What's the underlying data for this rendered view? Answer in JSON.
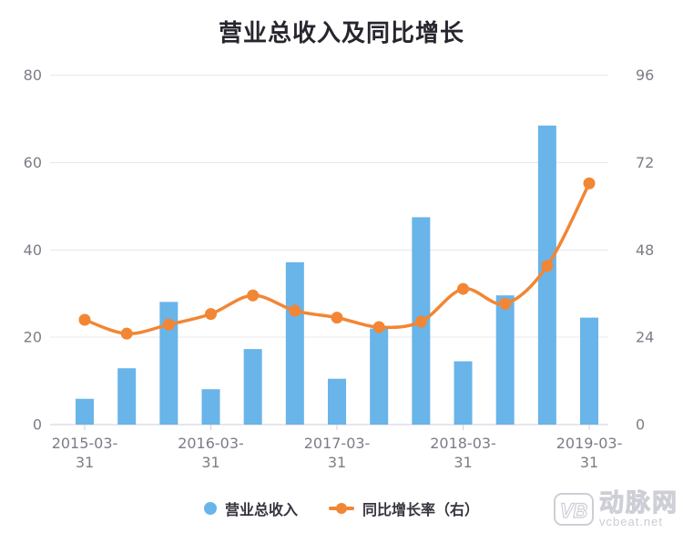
{
  "title": "营业总收入及同比增长",
  "legend": [
    {
      "label": "营业总收入",
      "type": "bar"
    },
    {
      "label": "同比增长率（右）",
      "type": "line"
    }
  ],
  "watermark": {
    "logo": "VB",
    "brand": "动脉网",
    "site": "vcbeat.net"
  },
  "colors": {
    "bar": "#69b4e9",
    "line": "#f28634",
    "grid": "#e8e8ed",
    "axis": "#ccced8",
    "axis_label": "#7c7c87",
    "title": "#26262e",
    "legend_text": "#34343e",
    "watermark": "#c9c9d2"
  },
  "chart_data": {
    "type": "bar",
    "subtype": "bar+line dual axis",
    "title": "营业总收入及同比增长",
    "categories": [
      "2015-03-31",
      "",
      "",
      "2016-03-31",
      "",
      "",
      "2017-03-31",
      "",
      "",
      "2018-03-31",
      "",
      "",
      "2019-03-31"
    ],
    "x_label_interval": 3,
    "series": [
      {
        "name": "营业总收入",
        "type": "bar",
        "axis": "left",
        "values": [
          5.9,
          12.9,
          28.1,
          8.1,
          17.3,
          37.2,
          10.5,
          22,
          47.5,
          14.5,
          29.6,
          68.5,
          24.5
        ]
      },
      {
        "name": "同比增长率（右）",
        "type": "line",
        "axis": "right",
        "smooth": true,
        "values": [
          28.8,
          25,
          27.5,
          30.4,
          35.5,
          31.3,
          29.4,
          26.8,
          28.3,
          37.3,
          33.2,
          43.6,
          66.3
        ]
      }
    ],
    "left_axis": {
      "min": 0,
      "max": 80,
      "ticks": [
        0,
        20,
        40,
        60,
        80
      ]
    },
    "right_axis": {
      "min": 0,
      "max": 96,
      "ticks": [
        0,
        24,
        48,
        72,
        96
      ]
    },
    "grid": "horizontal only",
    "legend_position": "bottom center"
  }
}
